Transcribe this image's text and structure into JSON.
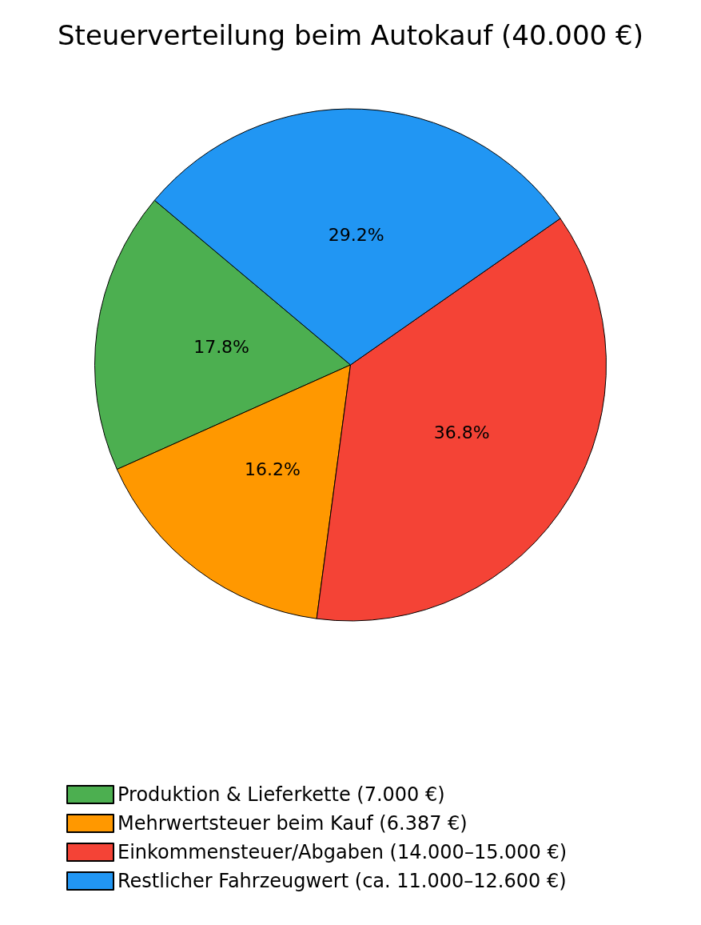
{
  "chart_data": {
    "type": "pie",
    "title": "Steuerverteilung beim Autokauf (40.000 €)",
    "categories": [
      "Produktion & Lieferkette (7.000 €)",
      "Mehrwertsteuer beim Kauf (6.387 €)",
      "Einkommensteuer/Abgaben (14.000–15.000 €)",
      "Restlicher Fahrzeugwert (ca. 11.000–12.600 €)"
    ],
    "values": [
      17.8,
      16.2,
      36.8,
      29.2
    ],
    "colors": [
      "#4caf50",
      "#ff9800",
      "#f44336",
      "#2196f3"
    ],
    "value_labels": [
      "17.8%",
      "16.2%",
      "36.8%",
      "29.2%"
    ],
    "legend": "bottom"
  }
}
